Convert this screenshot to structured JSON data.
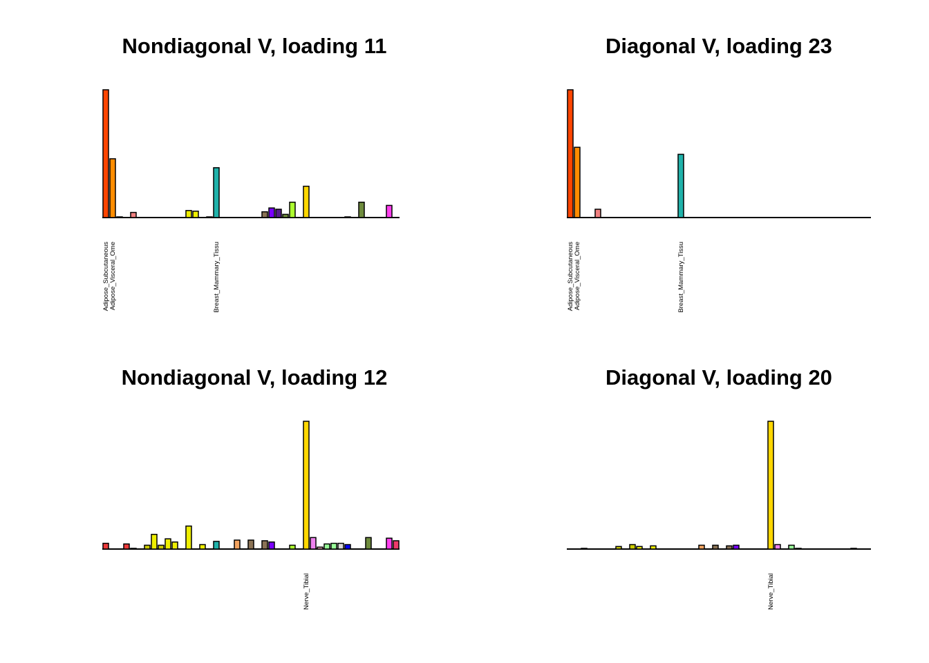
{
  "chart_data": [
    {
      "type": "bar",
      "title": "Nondiagonal V, loading 11",
      "tick_labels": [
        {
          "index": 0,
          "text": "Adipose_Subcutaneous"
        },
        {
          "index": 1,
          "text": "Adipose_Visceral_Ome"
        },
        {
          "index": 16,
          "text": "Breast_Mammary_Tissu"
        }
      ],
      "values": [
        1.0,
        0.46,
        0.005,
        0,
        0.04,
        0,
        0,
        0,
        0,
        0,
        0,
        0,
        0.055,
        0.05,
        0,
        0.005,
        0.39,
        0,
        0,
        0,
        0,
        0,
        0,
        0.045,
        0.075,
        0.065,
        0.025,
        0.12,
        0,
        0.245,
        0,
        0,
        0,
        0,
        0,
        0.005,
        0,
        0.12,
        0,
        0,
        0,
        0.095,
        0
      ],
      "colors": [
        "#FF4500",
        "#FF8C00",
        "#FF8C00",
        "#8B008B",
        "#F08080",
        "#EE3B3B",
        "#EE3B3B",
        "#CDCD00",
        "#EEEE00",
        "#CDCD00",
        "#EEEE00",
        "#EEEE00",
        "#EEEE00",
        "#EEEE00",
        "#20B2AA",
        "#20B2AA",
        "#20B2AA",
        "#CD9B1D",
        "#CD9B1D",
        "#EEB422",
        "#F4A460",
        "#8B7355",
        "#8B7355",
        "#8B7355",
        "#7A00FF",
        "#551A8B",
        "#6E8B3D",
        "#ADFF2F",
        "#00C957",
        "#FFD700",
        "#EE82EE",
        "#FFB6C1",
        "#98FB98",
        "#9AFF9A",
        "#D9D9D9",
        "#0000FF",
        "#6E8B3D",
        "#6E8B3D",
        "#FF00FF",
        "#FF3E96",
        "#FF3E96",
        "#FF3EEE",
        "#EE3B6B"
      ],
      "ylim": [
        0,
        1.0
      ]
    },
    {
      "type": "bar",
      "title": "Diagonal V, loading 23",
      "tick_labels": [
        {
          "index": 0,
          "text": "Adipose_Subcutaneous"
        },
        {
          "index": 1,
          "text": "Adipose_Visceral_Ome"
        },
        {
          "index": 16,
          "text": "Breast_Mammary_Tissu"
        }
      ],
      "values": [
        1.0,
        0.55,
        0,
        0,
        0.065,
        0,
        0,
        0,
        0,
        0,
        0,
        0,
        0,
        0,
        0,
        0,
        0.495,
        0,
        0,
        0,
        0,
        0,
        0,
        0,
        0,
        0,
        0,
        0,
        0,
        0,
        0,
        0,
        0,
        0,
        0,
        0,
        0,
        0,
        0,
        0,
        0,
        0,
        0,
        0
      ],
      "colors": [
        "#FF4500",
        "#FF8C00",
        "#FF8C00",
        "#8B008B",
        "#F08080",
        "#EE3B3B",
        "#EE3B3B",
        "#CDCD00",
        "#EEEE00",
        "#CDCD00",
        "#EEEE00",
        "#EEEE00",
        "#EEEE00",
        "#EEEE00",
        "#20B2AA",
        "#20B2AA",
        "#20B2AA",
        "#CD9B1D",
        "#CD9B1D",
        "#EEB422",
        "#F4A460",
        "#8B7355",
        "#8B7355",
        "#8B7355",
        "#7A00FF",
        "#551A8B",
        "#6E8B3D",
        "#ADFF2F",
        "#00C957",
        "#FFD700",
        "#EE82EE",
        "#FFB6C1",
        "#98FB98",
        "#9AFF9A",
        "#D9D9D9",
        "#0000FF",
        "#6E8B3D",
        "#6E8B3D",
        "#FF00FF",
        "#FF3E96",
        "#FF3E96",
        "#FF3EEE",
        "#EE3B6B",
        "#EE3B6B"
      ],
      "ylim": [
        0,
        1.0
      ]
    },
    {
      "type": "bar",
      "title": "Nondiagonal V, loading 12",
      "tick_labels": [
        {
          "index": 29,
          "text": "Nerve_Tibial"
        }
      ],
      "values": [
        0.045,
        0,
        0,
        0.04,
        0.005,
        0,
        0.03,
        0.115,
        0.03,
        0.08,
        0.055,
        0,
        0.18,
        0,
        0.035,
        0,
        0.06,
        0,
        0,
        0.07,
        0,
        0.07,
        0,
        0.065,
        0.055,
        0,
        0,
        0.03,
        0,
        1.0,
        0.09,
        0.015,
        0.04,
        0.045,
        0.045,
        0.035,
        0,
        0,
        0.09,
        0,
        0,
        0.085,
        0.065
      ],
      "colors": [
        "#EE3B3B",
        "#FF8C00",
        "#FF8C00",
        "#EE3B3B",
        "#8B008B",
        "#F08080",
        "#CDCD00",
        "#EEEE00",
        "#CDCD00",
        "#EEEE00",
        "#EEEE00",
        "#EEEE00",
        "#EEEE00",
        "#20B2AA",
        "#EEEE00",
        "#20B2AA",
        "#20B2AA",
        "#CD9B1D",
        "#CD9B1D",
        "#F4A460",
        "#EEB422",
        "#8B7355",
        "#8B7355",
        "#8B7355",
        "#7A00FF",
        "#551A8B",
        "#6E8B3D",
        "#ADFF2F",
        "#00C957",
        "#FFD700",
        "#EE82EE",
        "#FFB6C1",
        "#98FB98",
        "#9AFF9A",
        "#D9D9D9",
        "#0000FF",
        "#6E8B3D",
        "#6E8B3D",
        "#6E8B3D",
        "#FF00FF",
        "#FF3E96",
        "#FF3EEE",
        "#EE3B6B"
      ],
      "ylim": [
        0,
        1.0
      ]
    },
    {
      "type": "bar",
      "title": "Diagonal V, loading 20",
      "tick_labels": [
        {
          "index": 29,
          "text": "Nerve_Tibial"
        }
      ],
      "values": [
        0,
        0,
        0.005,
        0,
        0,
        0,
        0,
        0.02,
        0,
        0.035,
        0.02,
        0,
        0.025,
        0,
        0,
        0,
        0,
        0,
        0,
        0.03,
        0,
        0.03,
        0,
        0.025,
        0.03,
        0,
        0,
        0,
        0,
        1.0,
        0.035,
        0,
        0.03,
        0.005,
        0,
        0,
        0,
        0,
        0,
        0,
        0,
        0.005,
        0,
        0
      ],
      "colors": [
        "#FF4500",
        "#FF8C00",
        "#FF8C00",
        "#8B008B",
        "#F08080",
        "#EE3B3B",
        "#EE3B3B",
        "#CDCD00",
        "#EEEE00",
        "#CDCD00",
        "#EEEE00",
        "#EEEE00",
        "#EEEE00",
        "#EEEE00",
        "#20B2AA",
        "#20B2AA",
        "#20B2AA",
        "#CD9B1D",
        "#CD9B1D",
        "#F4A460",
        "#EEB422",
        "#8B7355",
        "#8B7355",
        "#8B7355",
        "#7A00FF",
        "#551A8B",
        "#6E8B3D",
        "#ADFF2F",
        "#00C957",
        "#FFD700",
        "#EE82EE",
        "#FFB6C1",
        "#98FB98",
        "#9AFF9A",
        "#D9D9D9",
        "#0000FF",
        "#6E8B3D",
        "#6E8B3D",
        "#FF00FF",
        "#FF3E96",
        "#FF3E96",
        "#FF3EEE",
        "#EE3B6B",
        "#EE3B6B"
      ],
      "ylim": [
        0,
        1.0
      ]
    }
  ]
}
